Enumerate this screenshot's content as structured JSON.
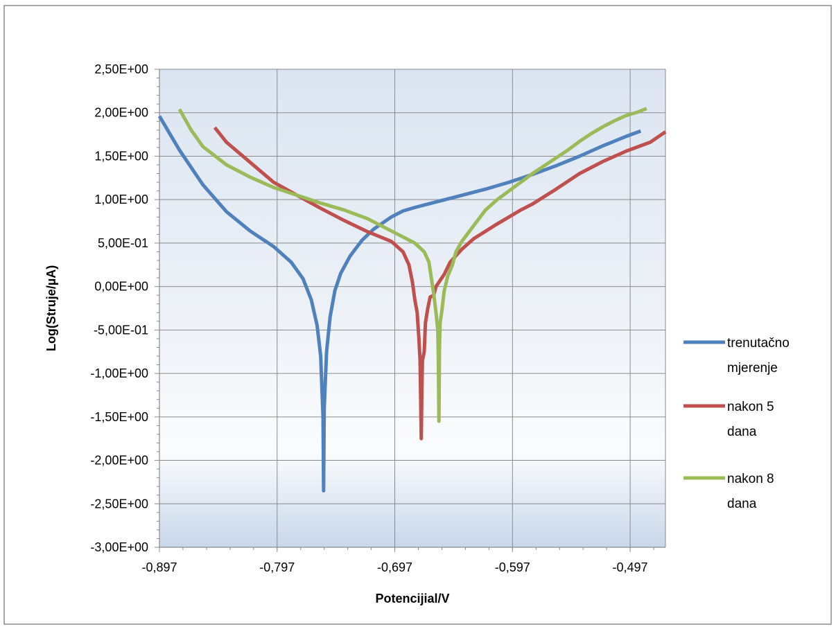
{
  "chart_data": {
    "type": "line",
    "title": "",
    "xlabel": "Potencijial/V",
    "ylabel": "Log(Struje/µA)",
    "xlim": [
      -0.897,
      -0.467
    ],
    "ylim": [
      -3.0,
      2.5
    ],
    "x_ticks": [
      -0.897,
      -0.797,
      -0.697,
      -0.597,
      -0.497
    ],
    "x_tick_labels": [
      "-0,897",
      "-0,797",
      "-0,697",
      "-0,597",
      "-0,497"
    ],
    "y_ticks": [
      2.5,
      2.0,
      1.5,
      1.0,
      0.5,
      0.0,
      -0.5,
      -1.0,
      -1.5,
      -2.0,
      -2.5,
      -3.0
    ],
    "y_tick_labels": [
      "2,50E+00",
      "2,00E+00",
      "1,50E+00",
      "1,00E+00",
      "5,00E-01",
      "0,00E+00",
      "-5,00E-01",
      "-1,00E+00",
      "-1,50E+00",
      "-2,00E+00",
      "-2,50E+00",
      "-3,00E+00"
    ],
    "grid": "major",
    "legend_position": "right",
    "series": [
      {
        "name": "trenutačno mjerenje",
        "color": "#4f81bd",
        "points": [
          [
            -0.897,
            1.96
          ],
          [
            -0.88,
            1.57
          ],
          [
            -0.86,
            1.17
          ],
          [
            -0.84,
            0.86
          ],
          [
            -0.82,
            0.64
          ],
          [
            -0.8,
            0.46
          ],
          [
            -0.785,
            0.28
          ],
          [
            -0.775,
            0.09
          ],
          [
            -0.768,
            -0.15
          ],
          [
            -0.763,
            -0.45
          ],
          [
            -0.76,
            -0.8
          ],
          [
            -0.758,
            -1.5
          ],
          [
            -0.7575,
            -2.35
          ],
          [
            -0.757,
            -1.4
          ],
          [
            -0.755,
            -0.75
          ],
          [
            -0.752,
            -0.35
          ],
          [
            -0.748,
            -0.05
          ],
          [
            -0.743,
            0.15
          ],
          [
            -0.735,
            0.35
          ],
          [
            -0.725,
            0.53
          ],
          [
            -0.715,
            0.66
          ],
          [
            -0.7,
            0.8
          ],
          [
            -0.69,
            0.87
          ],
          [
            -0.68,
            0.91
          ],
          [
            -0.66,
            0.98
          ],
          [
            -0.64,
            1.05
          ],
          [
            -0.62,
            1.12
          ],
          [
            -0.6,
            1.2
          ],
          [
            -0.58,
            1.29
          ],
          [
            -0.56,
            1.39
          ],
          [
            -0.54,
            1.5
          ],
          [
            -0.52,
            1.62
          ],
          [
            -0.5,
            1.73
          ],
          [
            -0.488,
            1.79
          ]
        ]
      },
      {
        "name": "nakon 5 dana",
        "color": "#c0504d",
        "points": [
          [
            -0.85,
            1.83
          ],
          [
            -0.84,
            1.66
          ],
          [
            -0.82,
            1.43
          ],
          [
            -0.8,
            1.2
          ],
          [
            -0.78,
            1.05
          ],
          [
            -0.76,
            0.9
          ],
          [
            -0.74,
            0.76
          ],
          [
            -0.72,
            0.63
          ],
          [
            -0.7,
            0.52
          ],
          [
            -0.69,
            0.4
          ],
          [
            -0.685,
            0.25
          ],
          [
            -0.682,
            0.05
          ],
          [
            -0.68,
            -0.15
          ],
          [
            -0.678,
            -0.3
          ],
          [
            -0.6765,
            -0.6
          ],
          [
            -0.6755,
            -0.85
          ],
          [
            -0.675,
            -1.3
          ],
          [
            -0.6745,
            -1.75
          ],
          [
            -0.674,
            -1.2
          ],
          [
            -0.6735,
            -0.85
          ],
          [
            -0.672,
            -0.75
          ],
          [
            -0.671,
            -0.42
          ],
          [
            -0.669,
            -0.25
          ],
          [
            -0.667,
            -0.12
          ],
          [
            -0.664,
            -0.1
          ],
          [
            -0.662,
            0.0
          ],
          [
            -0.659,
            0.06
          ],
          [
            -0.655,
            0.14
          ],
          [
            -0.65,
            0.28
          ],
          [
            -0.64,
            0.43
          ],
          [
            -0.63,
            0.55
          ],
          [
            -0.61,
            0.72
          ],
          [
            -0.59,
            0.88
          ],
          [
            -0.58,
            0.95
          ],
          [
            -0.56,
            1.12
          ],
          [
            -0.54,
            1.3
          ],
          [
            -0.52,
            1.44
          ],
          [
            -0.5,
            1.56
          ],
          [
            -0.48,
            1.66
          ],
          [
            -0.467,
            1.78
          ]
        ]
      },
      {
        "name": "nakon 8 dana",
        "color": "#9bbb59",
        "points": [
          [
            -0.88,
            2.04
          ],
          [
            -0.87,
            1.8
          ],
          [
            -0.86,
            1.61
          ],
          [
            -0.84,
            1.4
          ],
          [
            -0.82,
            1.26
          ],
          [
            -0.8,
            1.14
          ],
          [
            -0.78,
            1.05
          ],
          [
            -0.76,
            0.96
          ],
          [
            -0.74,
            0.88
          ],
          [
            -0.72,
            0.78
          ],
          [
            -0.7,
            0.64
          ],
          [
            -0.68,
            0.5
          ],
          [
            -0.672,
            0.4
          ],
          [
            -0.668,
            0.28
          ],
          [
            -0.666,
            0.1
          ],
          [
            -0.664,
            -0.08
          ],
          [
            -0.662,
            -0.3
          ],
          [
            -0.6605,
            -0.5
          ],
          [
            -0.66,
            -0.8
          ],
          [
            -0.6595,
            -1.55
          ],
          [
            -0.659,
            -0.7
          ],
          [
            -0.6585,
            -0.42
          ],
          [
            -0.657,
            -0.28
          ],
          [
            -0.655,
            -0.05
          ],
          [
            -0.652,
            0.12
          ],
          [
            -0.648,
            0.25
          ],
          [
            -0.645,
            0.4
          ],
          [
            -0.64,
            0.52
          ],
          [
            -0.63,
            0.7
          ],
          [
            -0.62,
            0.88
          ],
          [
            -0.61,
            1.0
          ],
          [
            -0.6,
            1.1
          ],
          [
            -0.59,
            1.2
          ],
          [
            -0.58,
            1.3
          ],
          [
            -0.57,
            1.39
          ],
          [
            -0.56,
            1.48
          ],
          [
            -0.55,
            1.57
          ],
          [
            -0.54,
            1.67
          ],
          [
            -0.53,
            1.76
          ],
          [
            -0.52,
            1.84
          ],
          [
            -0.51,
            1.91
          ],
          [
            -0.5,
            1.97
          ],
          [
            -0.49,
            2.01
          ],
          [
            -0.483,
            2.05
          ]
        ]
      }
    ]
  }
}
